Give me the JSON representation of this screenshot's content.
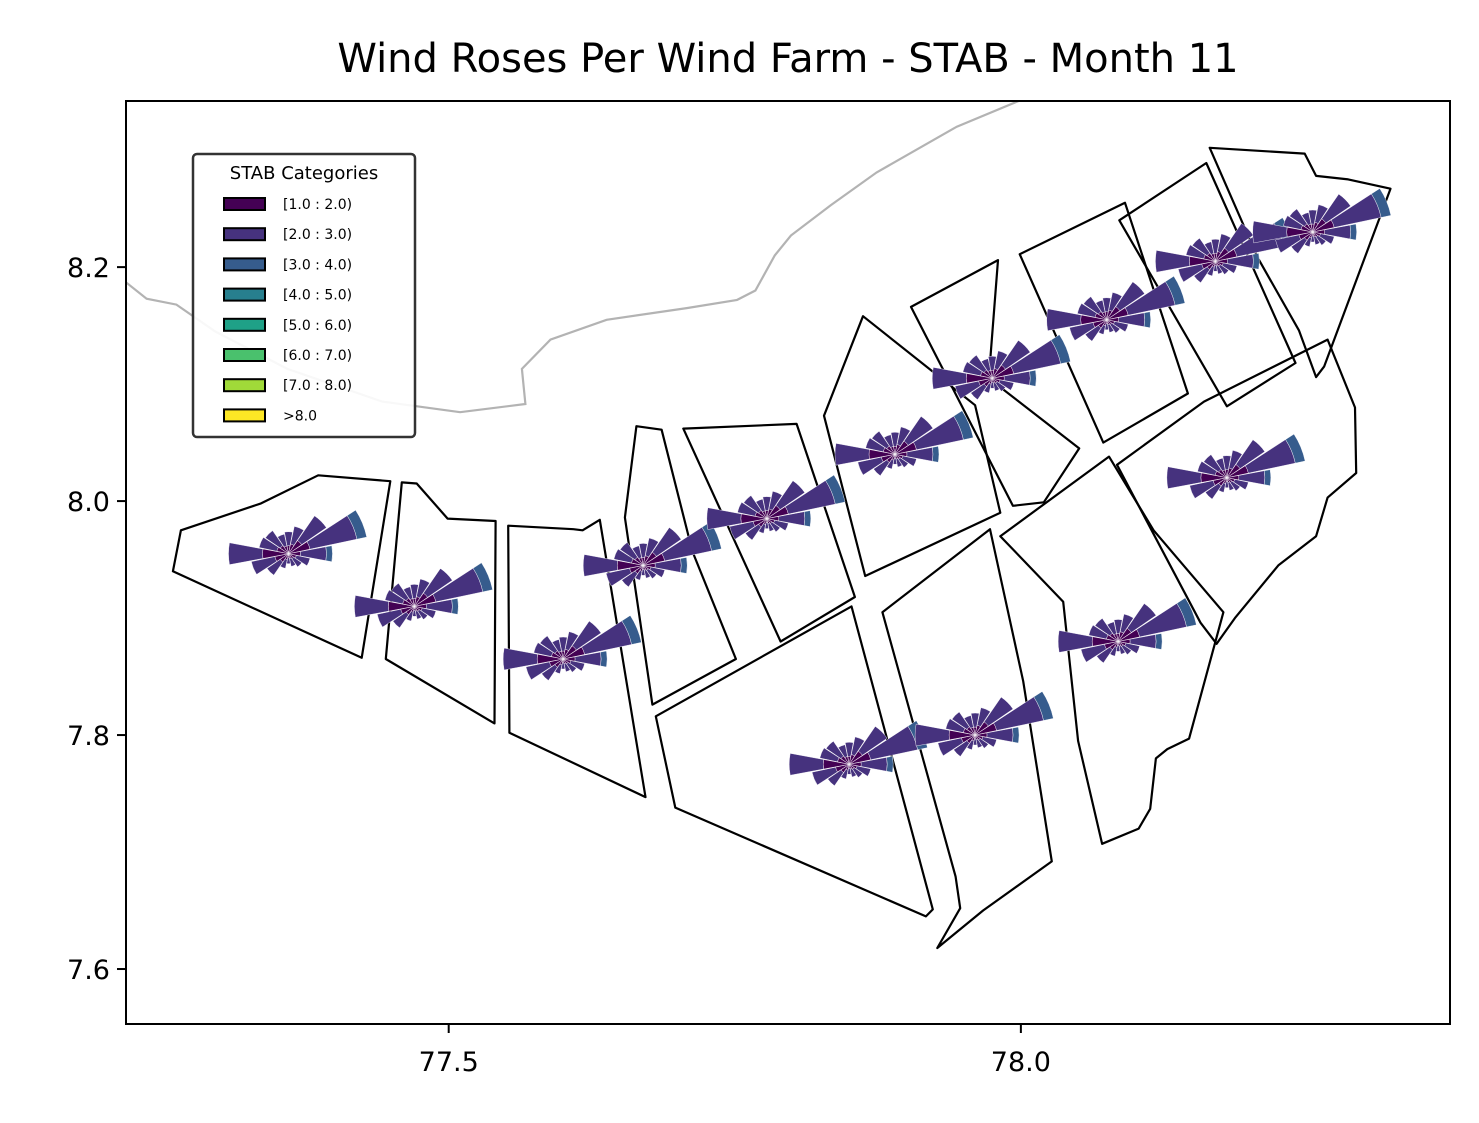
{
  "chart_data": {
    "type": "map",
    "title": "Wind Roses Per Wind Farm - STAB - Month 11",
    "xlim": [
      77.218,
      78.375
    ],
    "ylim": [
      7.553,
      8.342
    ],
    "x_ticks": [
      {
        "value": 77.5,
        "label": "77.5"
      },
      {
        "value": 78.0,
        "label": "78.0"
      }
    ],
    "y_ticks": [
      {
        "value": 7.6,
        "label": "7.6"
      },
      {
        "value": 7.8,
        "label": "7.8"
      },
      {
        "value": 8.0,
        "label": "8.0"
      },
      {
        "value": 8.2,
        "label": "8.2"
      }
    ],
    "grid": false,
    "legend": {
      "title": "STAB Categories",
      "placement": "upper-left",
      "entries": [
        {
          "label": "[1.0 : 2.0)",
          "color": "#440154"
        },
        {
          "label": "[2.0 : 3.0)",
          "color": "#46327e"
        },
        {
          "label": "[3.0 : 4.0)",
          "color": "#365c8d"
        },
        {
          "label": "[4.0 : 5.0)",
          "color": "#277f8e"
        },
        {
          "label": "[5.0 : 6.0)",
          "color": "#1fa187"
        },
        {
          "label": "[6.0 : 7.0)",
          "color": "#4ac16d"
        },
        {
          "label": "[7.0 : 8.0)",
          "color": "#a0da39"
        },
        {
          "label": ">8.0",
          "color": "#fde725"
        }
      ]
    },
    "coastline": [
      [
        77.218,
        8.187
      ],
      [
        77.236,
        8.173
      ],
      [
        77.262,
        8.168
      ],
      [
        77.296,
        8.145
      ],
      [
        77.359,
        8.113
      ],
      [
        77.442,
        8.085
      ],
      [
        77.51,
        8.076
      ],
      [
        77.567,
        8.083
      ],
      [
        77.564,
        8.113
      ],
      [
        77.589,
        8.138
      ],
      [
        77.638,
        8.155
      ],
      [
        77.708,
        8.165
      ],
      [
        77.752,
        8.172
      ],
      [
        77.768,
        8.18
      ],
      [
        77.785,
        8.21
      ],
      [
        77.799,
        8.227
      ],
      [
        77.834,
        8.253
      ],
      [
        77.874,
        8.281
      ],
      [
        77.944,
        8.32
      ],
      [
        77.998,
        8.342
      ]
    ],
    "farms": [
      {
        "center": [
          77.36,
          7.955
        ],
        "polygon": [
          [
            77.266,
            7.975
          ],
          [
            77.336,
            7.998
          ],
          [
            77.386,
            8.022
          ],
          [
            77.449,
            8.017
          ],
          [
            77.424,
            7.866
          ],
          [
            77.259,
            7.94
          ]
        ]
      },
      {
        "center": [
          77.47,
          7.91
        ],
        "polygon": [
          [
            77.459,
            8.016
          ],
          [
            77.472,
            8.015
          ],
          [
            77.499,
            7.985
          ],
          [
            77.541,
            7.983
          ],
          [
            77.54,
            7.81
          ],
          [
            77.445,
            7.865
          ]
        ]
      },
      {
        "center": [
          77.6,
          7.865
        ],
        "polygon": [
          [
            77.552,
            7.979
          ],
          [
            77.609,
            7.976
          ],
          [
            77.617,
            7.975
          ],
          [
            77.632,
            7.984
          ],
          [
            77.672,
            7.747
          ],
          [
            77.553,
            7.802
          ]
        ]
      },
      {
        "center": [
          77.67,
          7.945
        ],
        "polygon": [
          [
            77.664,
            8.064
          ],
          [
            77.686,
            8.061
          ],
          [
            77.713,
            7.957
          ],
          [
            77.751,
            7.865
          ],
          [
            77.678,
            7.826
          ],
          [
            77.654,
            7.986
          ]
        ]
      },
      {
        "center": [
          77.778,
          7.985
        ],
        "polygon": [
          [
            77.705,
            8.062
          ],
          [
            77.804,
            8.066
          ],
          [
            77.855,
            7.918
          ],
          [
            77.79,
            7.88
          ]
        ]
      },
      {
        "center": [
          77.85,
          7.775
        ],
        "polygon": [
          [
            77.681,
            7.816
          ],
          [
            77.852,
            7.91
          ],
          [
            77.923,
            7.651
          ],
          [
            77.917,
            7.645
          ],
          [
            77.698,
            7.738
          ]
        ]
      },
      {
        "center": [
          77.89,
          8.04
        ],
        "polygon": [
          [
            77.828,
            8.073
          ],
          [
            77.862,
            8.158
          ],
          [
            77.96,
            8.082
          ],
          [
            77.982,
            7.99
          ],
          [
            77.864,
            7.936
          ]
        ]
      },
      {
        "center": [
          77.96,
          7.8
        ],
        "polygon": [
          [
            77.879,
            7.905
          ],
          [
            77.973,
            7.976
          ],
          [
            78.002,
            7.846
          ],
          [
            78.027,
            7.692
          ],
          [
            77.967,
            7.65
          ],
          [
            77.927,
            7.618
          ],
          [
            77.947,
            7.652
          ],
          [
            77.943,
            7.679
          ]
        ]
      },
      {
        "center": [
          77.975,
          8.105
        ],
        "polygon": [
          [
            77.904,
            8.166
          ],
          [
            77.98,
            8.206
          ],
          [
            77.972,
            8.105
          ],
          [
            78.051,
            8.045
          ],
          [
            78.02,
            7.999
          ],
          [
            77.993,
            7.996
          ]
        ]
      },
      {
        "center": [
          78.075,
          8.155
        ],
        "polygon": [
          [
            77.999,
            8.211
          ],
          [
            78.091,
            8.255
          ],
          [
            78.146,
            8.092
          ],
          [
            78.072,
            8.05
          ]
        ]
      },
      {
        "center": [
          78.085,
          7.88
        ],
        "polygon": [
          [
            77.982,
            7.97
          ],
          [
            78.077,
            8.038
          ],
          [
            78.116,
            7.975
          ],
          [
            78.177,
            7.905
          ],
          [
            78.147,
            7.797
          ],
          [
            78.128,
            7.788
          ],
          [
            78.118,
            7.78
          ],
          [
            78.113,
            7.737
          ],
          [
            78.103,
            7.72
          ],
          [
            78.071,
            7.707
          ],
          [
            78.05,
            7.795
          ],
          [
            78.037,
            7.914
          ]
        ]
      },
      {
        "center": [
          78.17,
          8.205
        ],
        "polygon": [
          [
            78.086,
            8.24
          ],
          [
            78.162,
            8.289
          ],
          [
            78.24,
            8.118
          ],
          [
            78.18,
            8.081
          ]
        ]
      },
      {
        "center": [
          78.18,
          8.02
        ],
        "polygon": [
          [
            78.084,
            8.031
          ],
          [
            78.16,
            8.085
          ],
          [
            78.268,
            8.138
          ],
          [
            78.292,
            8.08
          ],
          [
            78.293,
            8.024
          ],
          [
            78.268,
            8.003
          ],
          [
            78.258,
            7.97
          ],
          [
            78.225,
            7.945
          ],
          [
            78.187,
            7.9
          ],
          [
            78.171,
            7.878
          ],
          [
            78.157,
            7.896
          ]
        ]
      },
      {
        "center": [
          78.255,
          8.23
        ],
        "polygon": [
          [
            78.165,
            8.302
          ],
          [
            78.248,
            8.297
          ],
          [
            78.258,
            8.278
          ],
          [
            78.286,
            8.275
          ],
          [
            78.323,
            8.267
          ],
          [
            78.265,
            8.115
          ],
          [
            78.258,
            8.106
          ],
          [
            78.243,
            8.146
          ],
          [
            78.207,
            8.208
          ]
        ]
      }
    ]
  }
}
